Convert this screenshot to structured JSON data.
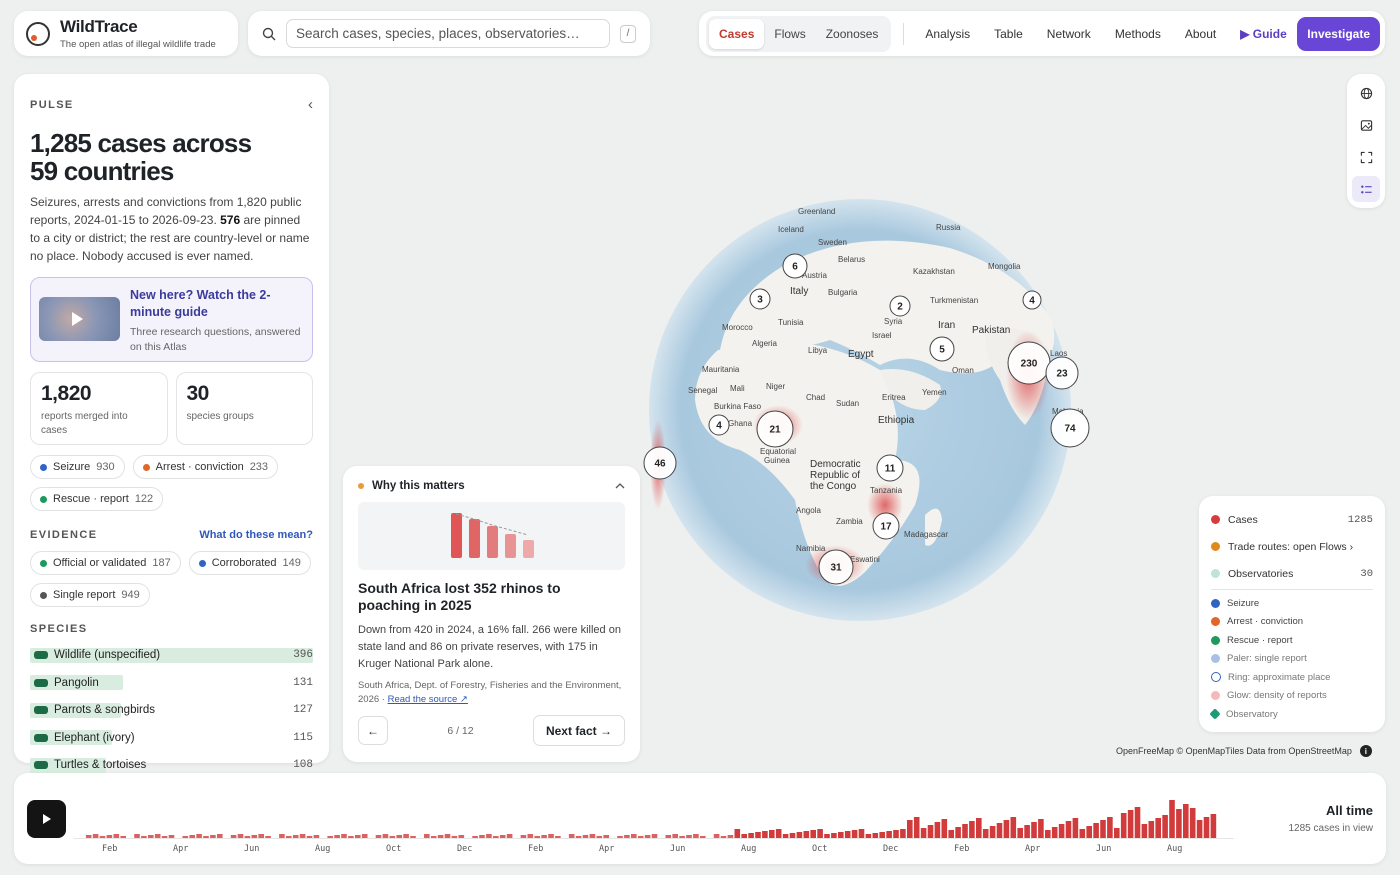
{
  "brand": {
    "name": "WildTrace",
    "tagline": "The open atlas of illegal wildlife trade"
  },
  "search": {
    "placeholder": "Search cases, species, places, observatories…",
    "shortcut": "/"
  },
  "nav": {
    "segments": [
      "Cases",
      "Flows",
      "Zoonoses"
    ],
    "active_segment": "Cases",
    "links": [
      "Analysis",
      "Table",
      "Network",
      "Methods",
      "About"
    ],
    "guide": "▶ Guide",
    "cta": "Investigate"
  },
  "pulse": {
    "label": "PULSE",
    "headline_line1": "1,285 cases across",
    "headline_line2": "59 countries",
    "desc_a": "Seizures, arrests and convictions from 1,820 public reports, 2024-01-15 to 2026-09-23. ",
    "desc_bold": "576",
    "desc_b": " are pinned to a city or district; the rest are country-level or name no place. Nobody accused is ever named.",
    "guide_title": "New here? Watch the 2-minute guide",
    "guide_sub": "Three research questions, answered on this Atlas",
    "stats": [
      {
        "num": "1,820",
        "label": "reports merged into cases"
      },
      {
        "num": "30",
        "label": "species groups"
      }
    ],
    "types": [
      {
        "label": "Seizure",
        "count": "930",
        "color": "#2f63c4"
      },
      {
        "label": "Arrest · conviction",
        "count": "233",
        "color": "#e0662a"
      },
      {
        "label": "Rescue · report",
        "count": "122",
        "color": "#1f9a5e"
      }
    ],
    "evidence_label": "EVIDENCE",
    "evidence_link": "What do these mean?",
    "evidence": [
      {
        "label": "Official or validated",
        "count": "187",
        "color": "#1f9a5e"
      },
      {
        "label": "Corroborated",
        "count": "149",
        "color": "#2f63c4"
      },
      {
        "label": "Single report",
        "count": "949",
        "color": "#555555"
      }
    ],
    "species_label": "SPECIES",
    "species": [
      {
        "name": "Wildlife (unspecified)",
        "count": "396",
        "pct": 100
      },
      {
        "name": "Pangolin",
        "count": "131",
        "pct": 33
      },
      {
        "name": "Parrots & songbirds",
        "count": "127",
        "pct": 32
      },
      {
        "name": "Elephant (ivory)",
        "count": "115",
        "pct": 29
      },
      {
        "name": "Turtles & tortoises",
        "count": "108",
        "pct": 27
      }
    ]
  },
  "fact": {
    "header": "Why this matters",
    "title": "South Africa lost 352 rhinos to poaching in 2025",
    "body": "Down from 420 in 2024, a 16% fall. 266 were killed on state land and 86 on private reserves, with 175 in Kruger National Park alone.",
    "source": "South Africa, Dept. of Forestry, Fisheries and the Environment, 2026 · ",
    "source_link": "Read the source ↗",
    "page": "6  /  12",
    "prev": "←",
    "next": "Next fact →"
  },
  "map": {
    "clusters": [
      {
        "label": "6"
      },
      {
        "label": "3"
      },
      {
        "label": "2"
      },
      {
        "label": "4"
      },
      {
        "label": "5"
      },
      {
        "label": "230"
      },
      {
        "label": "23"
      },
      {
        "label": "74"
      },
      {
        "label": "4"
      },
      {
        "label": "21"
      },
      {
        "label": "46"
      },
      {
        "label": "11"
      },
      {
        "label": "17"
      },
      {
        "label": "31"
      }
    ],
    "countries": [
      "Greenland",
      "Iceland",
      "Sweden",
      "Russia",
      "Belarus",
      "Austria",
      "Italy",
      "Bulgaria",
      "Kazakhstan",
      "Mongolia",
      "Turkmenistan",
      "Tunisia",
      "Morocco",
      "Syria",
      "Israel",
      "Iran",
      "Pakistan",
      "Algeria",
      "Libya",
      "Egypt",
      "Oman",
      "Laos",
      "Mauritania",
      "Mali",
      "Niger",
      "Senegal",
      "Chad",
      "Sudan",
      "Eritrea",
      "Yemen",
      "Burkina Faso",
      "Ghana",
      "Ethiopia",
      "Equatorial Guinea",
      "Democratic Republic of the Congo",
      "Tanzania",
      "Angola",
      "Zambia",
      "Madagascar",
      "Namibia",
      "Eswatini",
      "Malaysia"
    ],
    "attribution": "OpenFreeMap © OpenMapTiles Data from OpenStreetMap"
  },
  "legend": {
    "layers": [
      {
        "label": "Cases",
        "count": "1285",
        "color": "#d93a3a"
      },
      {
        "label": "Trade routes: open Flows ›",
        "count": "",
        "color": "#e08a1a"
      },
      {
        "label": "Observatories",
        "count": "30",
        "color": "#bfe3d5"
      }
    ],
    "keys": [
      {
        "label": "Seizure",
        "color": "#2f63c4",
        "kind": "dot"
      },
      {
        "label": "Arrest · conviction",
        "color": "#e0662a",
        "kind": "dot"
      },
      {
        "label": "Rescue · report",
        "color": "#1f9a5e",
        "kind": "dot"
      },
      {
        "label": "Paler: single report",
        "color": "#a8c0e8",
        "kind": "dot"
      },
      {
        "label": "Ring: approximate place",
        "color": "#2f63c4",
        "kind": "ring"
      },
      {
        "label": "Glow: density of reports",
        "color": "#f4b9b9",
        "kind": "dot"
      },
      {
        "label": "Observatory",
        "color": "#1f9a77",
        "kind": "diamond"
      }
    ]
  },
  "timeline": {
    "range_label": "All time",
    "count_label": "1285 cases in view",
    "month_labels": [
      "Feb",
      "Apr",
      "Jun",
      "Aug",
      "Oct",
      "Dec",
      "Feb",
      "Apr",
      "Jun",
      "Aug",
      "Oct",
      "Dec",
      "Feb",
      "Apr",
      "Jun",
      "Aug"
    ],
    "bar_color": "#d23b3b"
  }
}
